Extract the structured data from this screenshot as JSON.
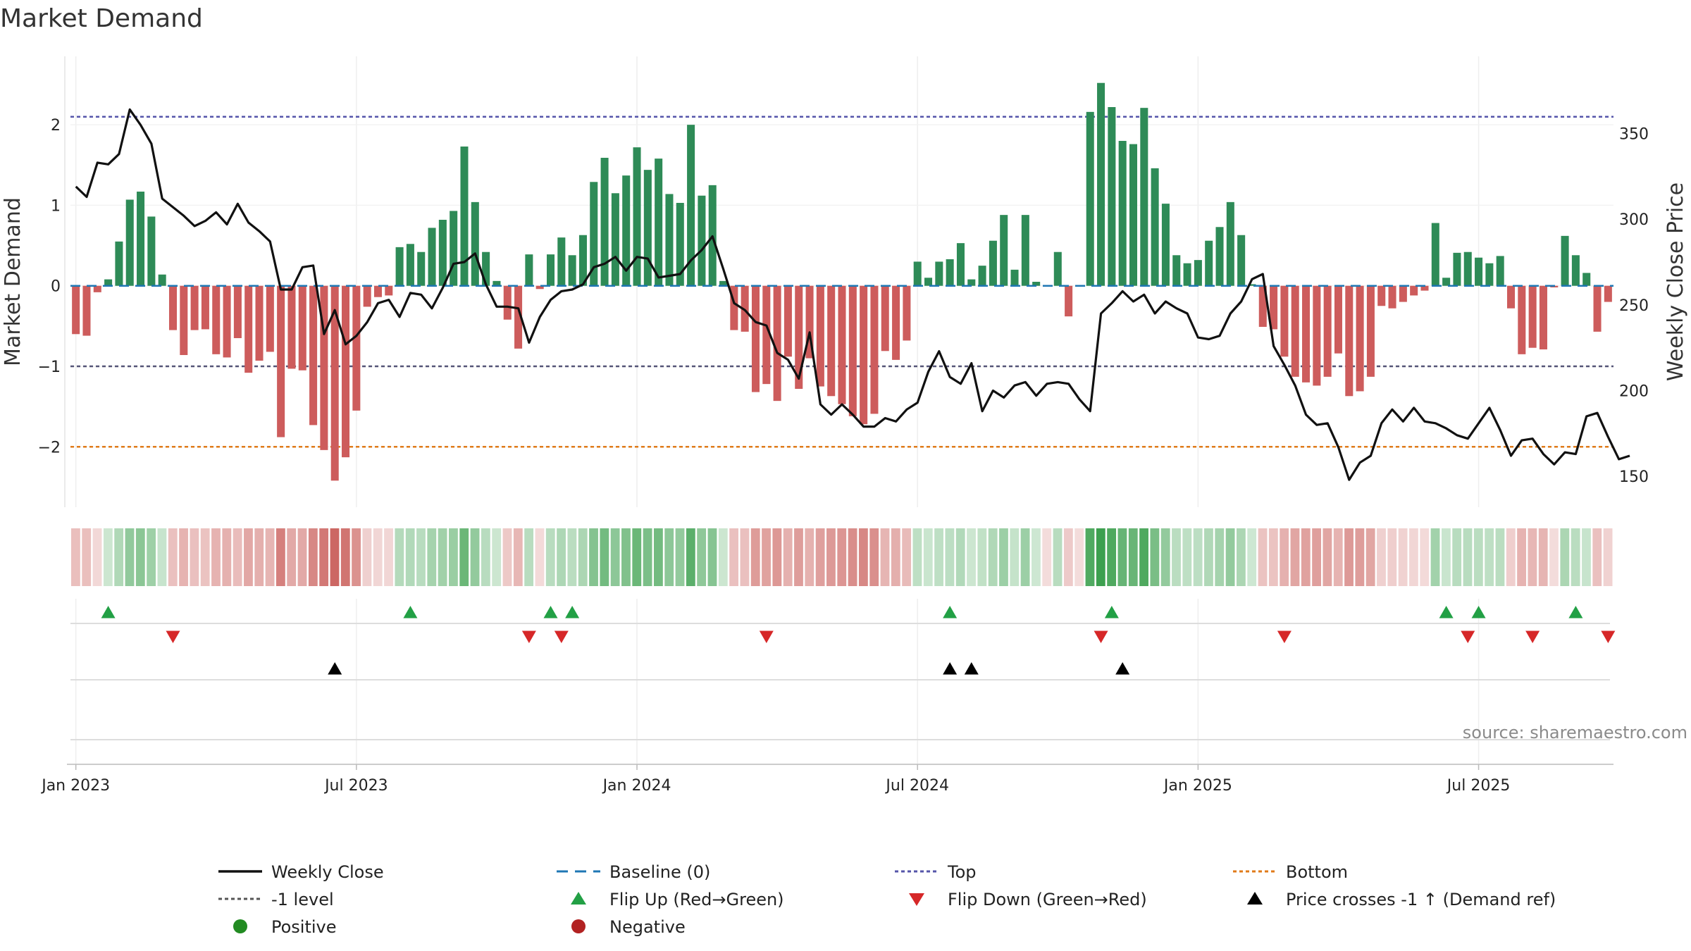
{
  "chart_data": {
    "type": "bar",
    "title": "Market Demand",
    "ylabel": "Market Demand",
    "y2label": "Weekly Close Price",
    "ylim": [
      -2.75,
      2.85
    ],
    "y2lim": [
      132,
      395
    ],
    "yticks": [
      2,
      1,
      0,
      -1,
      -2
    ],
    "ytick_labels": [
      "2",
      "1",
      "0",
      "−1",
      "−2"
    ],
    "y2ticks": [
      350,
      300,
      250,
      200,
      150
    ],
    "y2tick_labels": [
      "350",
      "300",
      "250",
      "200",
      "150"
    ],
    "xticks": [
      0,
      26,
      52,
      78,
      104,
      130
    ],
    "xtick_labels": [
      "Jan 2023",
      "Jul 2023",
      "Jan 2024",
      "Jul 2024",
      "Jan 2025",
      "Jul 2025"
    ],
    "reference_lines": {
      "top": 2.1,
      "minus_one": -1,
      "bottom": -2,
      "baseline": 0
    },
    "series": [
      {
        "name": "Market Demand",
        "values": [
          -0.6,
          -0.62,
          -0.08,
          0.08,
          0.55,
          1.07,
          1.17,
          0.86,
          0.14,
          -0.55,
          -0.86,
          -0.55,
          -0.54,
          -0.85,
          -0.89,
          -0.65,
          -1.08,
          -0.93,
          -0.82,
          -1.88,
          -1.03,
          -1.05,
          -1.73,
          -2.04,
          -2.42,
          -2.13,
          -1.55,
          -0.26,
          -0.14,
          -0.12,
          0.48,
          0.52,
          0.42,
          0.72,
          0.82,
          0.93,
          1.73,
          1.04,
          0.42,
          0.06,
          -0.42,
          -0.78,
          0.39,
          -0.04,
          0.39,
          0.6,
          0.38,
          0.63,
          1.29,
          1.59,
          1.15,
          1.37,
          1.72,
          1.44,
          1.58,
          1.14,
          1.03,
          2.0,
          1.12,
          1.25,
          0.06,
          -0.55,
          -0.57,
          -1.32,
          -1.22,
          -1.43,
          -0.88,
          -1.28,
          -0.9,
          -1.25,
          -1.37,
          -1.47,
          -1.62,
          -1.72,
          -1.59,
          -0.81,
          -0.92,
          -0.68,
          0.3,
          0.1,
          0.3,
          0.33,
          0.53,
          0.08,
          0.25,
          0.56,
          0.88,
          0.2,
          0.88,
          0.05,
          0,
          0.42,
          -0.38,
          0,
          2.16,
          2.52,
          2.22,
          1.8,
          1.76,
          2.21,
          1.46,
          1.02,
          0.38,
          0.28,
          0.32,
          0.56,
          0.73,
          1.04,
          0.63,
          0.02,
          -0.51,
          -0.54,
          -0.88,
          -1.13,
          -1.2,
          -1.24,
          -1.13,
          -0.84,
          -1.37,
          -1.31,
          -1.13,
          -0.25,
          -0.28,
          -0.2,
          -0.12,
          -0.06,
          0.78,
          0.1,
          0.41,
          0.42,
          0.35,
          0.28,
          0.37,
          -0.28,
          -0.85,
          -0.77,
          -0.79,
          -0.02,
          0.62,
          0.38,
          0.16,
          -0.57,
          -0.2
        ]
      },
      {
        "name": "Weekly Close",
        "values": [
          319,
          313,
          333,
          332,
          338,
          364,
          355,
          344,
          312,
          307,
          302,
          296,
          299,
          304,
          297,
          309,
          298,
          293,
          287,
          259,
          259,
          272,
          273,
          233,
          247,
          227,
          232,
          240,
          251,
          253,
          243,
          257,
          256,
          248,
          260,
          274,
          275,
          280,
          262,
          249,
          249,
          248,
          228,
          243,
          253,
          258,
          259,
          262,
          272,
          274,
          278,
          270,
          278,
          277,
          266,
          267,
          268,
          276,
          282,
          290,
          271,
          251,
          247,
          240,
          238,
          222,
          218,
          207,
          234,
          192,
          186,
          192,
          186,
          179,
          179,
          184,
          182,
          189,
          193,
          211,
          223,
          208,
          204,
          216,
          188,
          200,
          196,
          203,
          205,
          197,
          204,
          205,
          204,
          195,
          188,
          245,
          251,
          258,
          252,
          256,
          245,
          252,
          248,
          245,
          231,
          230,
          232,
          245,
          252,
          265,
          268,
          226,
          215,
          203,
          186,
          180,
          181,
          167,
          148,
          158,
          162,
          181,
          189,
          182,
          190,
          182,
          181,
          178,
          174,
          172,
          181,
          190,
          177,
          162,
          171,
          172,
          163,
          157,
          164,
          163,
          185,
          187,
          173,
          160,
          162
        ]
      }
    ],
    "heat_strip": [
      -0.6,
      -0.62,
      -0.08,
      0.08,
      0.55,
      1.07,
      1.17,
      0.86,
      0.14,
      -0.55,
      -0.86,
      -0.55,
      -0.54,
      -0.85,
      -0.89,
      -0.65,
      -1.08,
      -0.93,
      -0.82,
      -1.88,
      -1.03,
      -1.05,
      -1.73,
      -2.04,
      -2.42,
      -2.13,
      -1.55,
      -0.26,
      -0.14,
      -0.12,
      0.48,
      0.52,
      0.42,
      0.72,
      0.82,
      0.93,
      1.73,
      1.04,
      0.42,
      0.06,
      -0.42,
      -0.78,
      0.39,
      -0.04,
      0.39,
      0.6,
      0.38,
      0.63,
      1.29,
      1.59,
      1.15,
      1.37,
      1.72,
      1.44,
      1.58,
      1.14,
      1.03,
      2.0,
      1.12,
      1.25,
      0.06,
      -0.55,
      -0.57,
      -1.32,
      -1.22,
      -1.43,
      -0.88,
      -1.28,
      -0.9,
      -1.25,
      -1.37,
      -1.47,
      -1.62,
      -1.72,
      -1.59,
      -0.81,
      -0.92,
      -0.68,
      0.3,
      0.1,
      0.3,
      0.33,
      0.53,
      0.08,
      0.25,
      0.56,
      0.88,
      0.2,
      0.88,
      0.05,
      0,
      0.42,
      -0.38,
      0,
      2.16,
      2.52,
      2.22,
      1.8,
      1.76,
      2.21,
      1.46,
      1.02,
      0.38,
      0.28,
      0.32,
      0.56,
      0.73,
      1.04,
      0.63,
      0.02,
      -0.51,
      -0.54,
      -0.88,
      -1.13,
      -1.2,
      -1.24,
      -1.13,
      -0.84,
      -1.37,
      -1.31,
      -1.13,
      -0.25,
      -0.28,
      -0.2,
      -0.12,
      -0.06,
      0.78,
      0.1,
      0.41,
      0.42,
      0.35,
      0.28,
      0.37,
      -0.28,
      -0.85,
      -0.77,
      -0.79,
      -0.02,
      0.62,
      0.38,
      0.16,
      -0.57,
      -0.2
    ],
    "flip_up_weeks": [
      3,
      31,
      44,
      46,
      81,
      96,
      127,
      130,
      139
    ],
    "flip_down_weeks": [
      9,
      42,
      45,
      64,
      95,
      112,
      129,
      135,
      142
    ],
    "price_cross_weeks": [
      24,
      81,
      83,
      97
    ],
    "legend": [
      {
        "label": "Weekly Close",
        "marker": "solid-line",
        "color": "#111111"
      },
      {
        "label": "Baseline (0)",
        "marker": "dashed-line",
        "color": "#1f77b4"
      },
      {
        "label": "Top",
        "marker": "dotted-line",
        "color": "#5555aa"
      },
      {
        "label": "Bottom",
        "marker": "dotted-line",
        "color": "#e07b1a"
      },
      {
        "label": "-1 level",
        "marker": "dotted-line",
        "color": "#555555"
      },
      {
        "label": "Flip Up (Red→Green)",
        "marker": "triangle-up",
        "color": "#22a045"
      },
      {
        "label": "Flip Down (Green→Red)",
        "marker": "triangle-down",
        "color": "#d62728"
      },
      {
        "label": "Price crosses -1 ↑ (Demand ref)",
        "marker": "triangle-up",
        "color": "#000000"
      },
      {
        "label": "Positive",
        "marker": "circle",
        "color": "#228b22"
      },
      {
        "label": "Negative",
        "marker": "circle",
        "color": "#b22222"
      }
    ],
    "source": "source: sharemaestro.com"
  },
  "colors": {
    "positive_bar": "#2e8b57",
    "negative_bar": "#cd5c5c",
    "price_line": "#111111",
    "top_line": "#5555aa",
    "bottom_line": "#e07b1a",
    "minus_one_line": "#555577",
    "baseline": "#1f77b4",
    "flip_up": "#22a045",
    "flip_down": "#d62728",
    "price_cross": "#000000"
  }
}
